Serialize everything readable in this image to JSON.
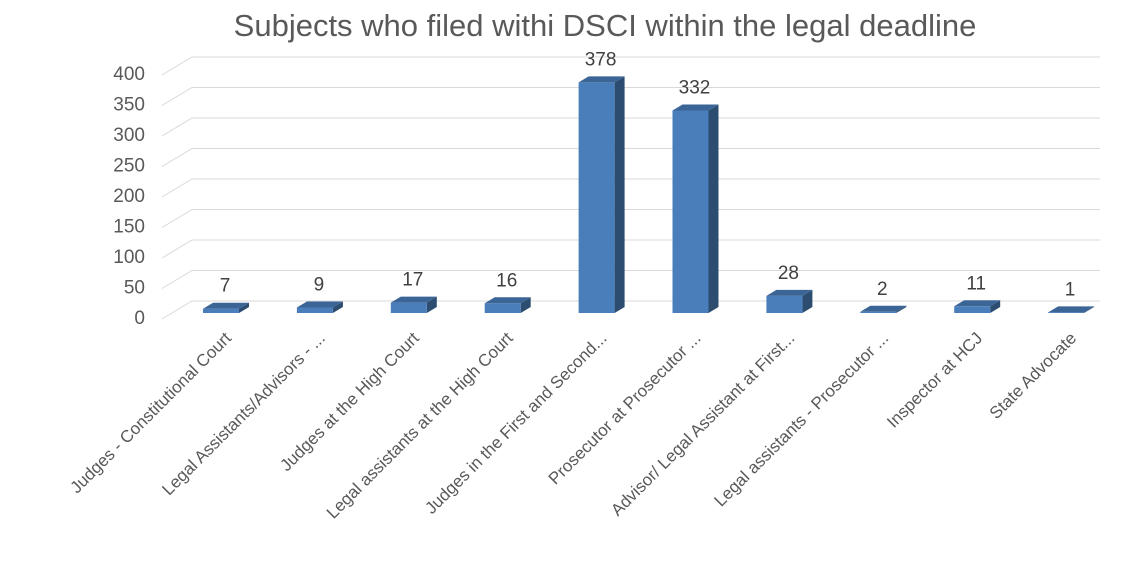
{
  "chart_data": {
    "type": "bar3d",
    "title": "Subjects who filed withi DSCI within the legal deadline",
    "categories": [
      "Judges - Constitutional Court",
      "Legal Assistants/Advisors - ...",
      "Judges at the High Court",
      "Legal assistants at the High Court",
      "Judges in the First and Second...",
      "Prosecutor at Prosecutor ...",
      "Advisor/ Legal Assistant at First...",
      "Legal assistants - Prosecutor ...",
      "Inspector at HCJ",
      "State Advocate"
    ],
    "values": [
      7,
      9,
      17,
      16,
      378,
      332,
      28,
      2,
      11,
      1
    ],
    "color": "#4a7ebb",
    "ylim": [
      0,
      400
    ],
    "yticks": [
      0,
      50,
      100,
      150,
      200,
      250,
      300,
      350,
      400
    ],
    "grid": true
  }
}
